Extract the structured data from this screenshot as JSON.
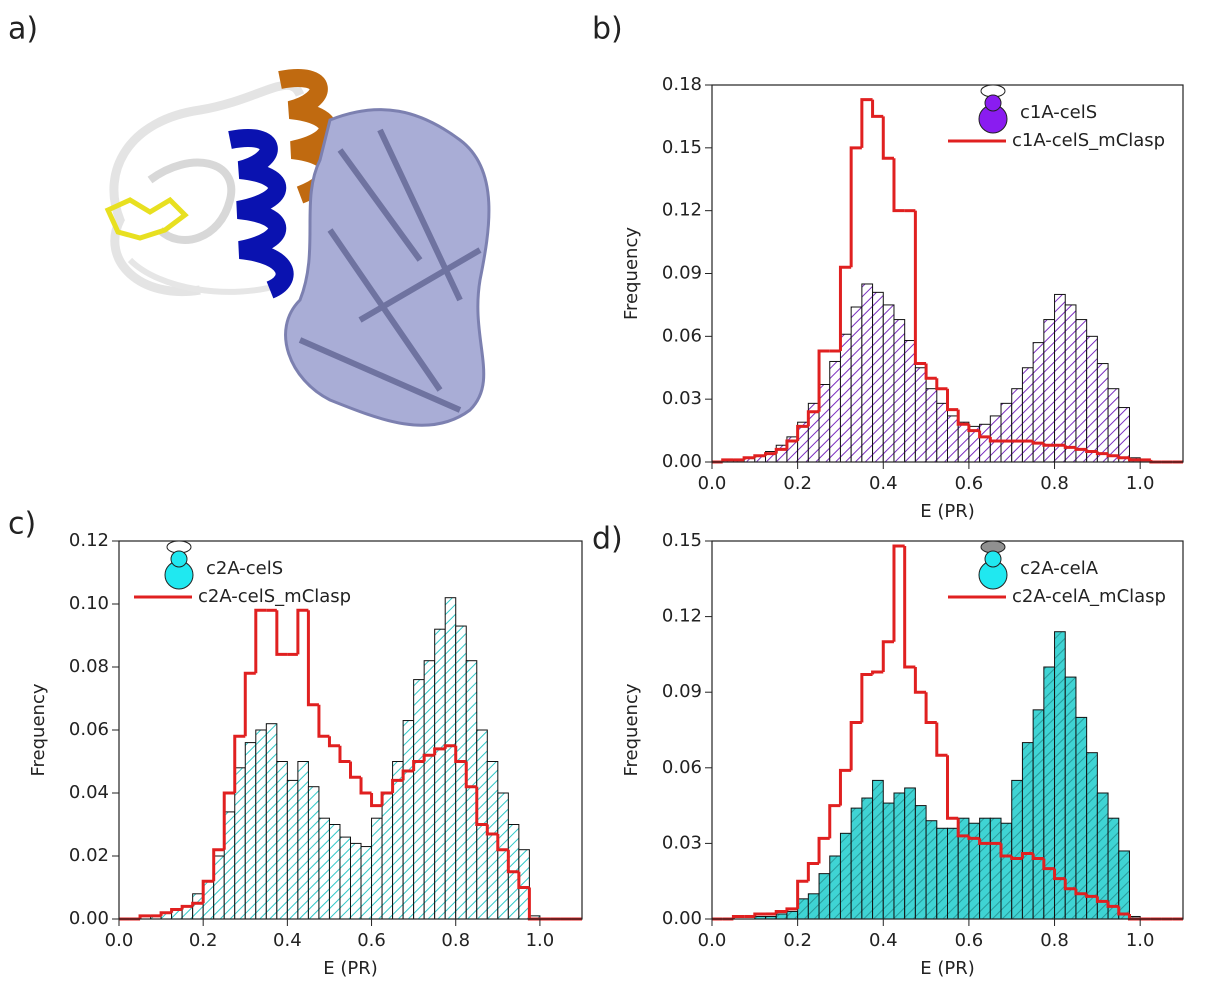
{
  "panel_a": {
    "label": "a)"
  },
  "chart_data": [
    {
      "type": "histogram",
      "label": "b)",
      "xlabel": "E (PR)",
      "ylabel": "Frequency",
      "bins": [
        0,
        0.025,
        0.05,
        0.075,
        0.1,
        0.125,
        0.15,
        0.175,
        0.2,
        0.225,
        0.25,
        0.275,
        0.3,
        0.325,
        0.35,
        0.375,
        0.4,
        0.425,
        0.45,
        0.475,
        0.5,
        0.525,
        0.55,
        0.575,
        0.6,
        0.625,
        0.65,
        0.675,
        0.7,
        0.725,
        0.75,
        0.775,
        0.8,
        0.825,
        0.85,
        0.875,
        0.9,
        0.925,
        0.95,
        0.975,
        1,
        1.025,
        1.05,
        1.075,
        1.1
      ],
      "xlim": [
        0,
        1.1
      ],
      "ylim": [
        0,
        0.18
      ],
      "xticks": [
        {
          "value": 0,
          "label": "0.0"
        },
        {
          "value": 0.2,
          "label": "0.2"
        },
        {
          "value": 0.4,
          "label": "0.4"
        },
        {
          "value": 0.6,
          "label": "0.6"
        },
        {
          "value": 0.8,
          "label": "0.8"
        },
        {
          "value": 1,
          "label": "1.0"
        }
      ],
      "yticks": [
        {
          "value": 0,
          "label": "0.00"
        },
        {
          "value": 0.03,
          "label": "0.03"
        },
        {
          "value": 0.06,
          "label": "0.06"
        },
        {
          "value": 0.09,
          "label": "0.09"
        },
        {
          "value": 0.12,
          "label": "0.12"
        },
        {
          "value": 0.15,
          "label": "0.15"
        },
        {
          "value": 0.18,
          "label": "0.18"
        }
      ],
      "legend": "upper right",
      "series": [
        {
          "name": "c1A-celS",
          "style": "bar",
          "color": "#7b2fbf",
          "fill": "#ffffff",
          "icon_color": "#8a1cf0",
          "cap_color": "#ffffff",
          "values": [
            0,
            0.001,
            0.001,
            0.002,
            0.003,
            0.005,
            0.008,
            0.012,
            0.019,
            0.028,
            0.037,
            0.048,
            0.061,
            0.074,
            0.085,
            0.081,
            0.075,
            0.068,
            0.058,
            0.045,
            0.035,
            0.028,
            0.022,
            0.019,
            0.017,
            0.018,
            0.022,
            0.028,
            0.035,
            0.045,
            0.057,
            0.068,
            0.08,
            0.075,
            0.068,
            0.06,
            0.047,
            0.035,
            0.026,
            0.002,
            0,
            0,
            0,
            0
          ]
        },
        {
          "name": "c1A-celS_mClasp",
          "style": "step",
          "color": "#e02020",
          "values": [
            0,
            0.001,
            0.001,
            0.002,
            0.003,
            0.004,
            0.006,
            0.01,
            0.017,
            0.024,
            0.053,
            0.053,
            0.093,
            0.15,
            0.173,
            0.165,
            0.145,
            0.12,
            0.12,
            0.047,
            0.04,
            0.035,
            0.025,
            0.018,
            0.015,
            0.012,
            0.01,
            0.01,
            0.01,
            0.01,
            0.009,
            0.008,
            0.008,
            0.007,
            0.006,
            0.005,
            0.004,
            0.003,
            0.002,
            0.001,
            0.001,
            0,
            0,
            0
          ]
        }
      ]
    },
    {
      "type": "histogram",
      "label": "c)",
      "xlabel": "E (PR)",
      "ylabel": "Frequency",
      "bins": [
        0,
        0.025,
        0.05,
        0.075,
        0.1,
        0.125,
        0.15,
        0.175,
        0.2,
        0.225,
        0.25,
        0.275,
        0.3,
        0.325,
        0.35,
        0.375,
        0.4,
        0.425,
        0.45,
        0.475,
        0.5,
        0.525,
        0.55,
        0.575,
        0.6,
        0.625,
        0.65,
        0.675,
        0.7,
        0.725,
        0.75,
        0.775,
        0.8,
        0.825,
        0.85,
        0.875,
        0.9,
        0.925,
        0.95,
        0.975,
        1,
        1.025,
        1.05,
        1.075,
        1.1
      ],
      "xlim": [
        0,
        1.1
      ],
      "ylim": [
        0,
        0.12
      ],
      "xticks": [
        {
          "value": 0,
          "label": "0.0"
        },
        {
          "value": 0.2,
          "label": "0.2"
        },
        {
          "value": 0.4,
          "label": "0.4"
        },
        {
          "value": 0.6,
          "label": "0.6"
        },
        {
          "value": 0.8,
          "label": "0.8"
        },
        {
          "value": 1,
          "label": "1.0"
        }
      ],
      "yticks": [
        {
          "value": 0,
          "label": "0.00"
        },
        {
          "value": 0.02,
          "label": "0.02"
        },
        {
          "value": 0.04,
          "label": "0.04"
        },
        {
          "value": 0.06,
          "label": "0.06"
        },
        {
          "value": 0.08,
          "label": "0.08"
        },
        {
          "value": 0.1,
          "label": "0.10"
        },
        {
          "value": 0.12,
          "label": "0.12"
        }
      ],
      "legend": "upper left",
      "series": [
        {
          "name": "c2A-celS",
          "style": "bar",
          "color": "#30c8c8",
          "fill": "#ffffff",
          "icon_color": "#20e8f0",
          "cap_color": "#ffffff",
          "values": [
            0,
            0,
            0,
            0.001,
            0.002,
            0.003,
            0.004,
            0.008,
            0.012,
            0.02,
            0.034,
            0.048,
            0.056,
            0.06,
            0.062,
            0.05,
            0.044,
            0.05,
            0.042,
            0.032,
            0.03,
            0.026,
            0.024,
            0.023,
            0.032,
            0.04,
            0.05,
            0.063,
            0.076,
            0.082,
            0.092,
            0.102,
            0.093,
            0.082,
            0.06,
            0.05,
            0.04,
            0.03,
            0.022,
            0.001,
            0,
            0,
            0,
            0
          ]
        },
        {
          "name": "c2A-celS_mClasp",
          "style": "step",
          "color": "#e02020",
          "values": [
            0,
            0,
            0.001,
            0.001,
            0.002,
            0.003,
            0.004,
            0.005,
            0.012,
            0.022,
            0.04,
            0.058,
            0.078,
            0.098,
            0.098,
            0.084,
            0.084,
            0.098,
            0.068,
            0.058,
            0.055,
            0.05,
            0.045,
            0.04,
            0.036,
            0.04,
            0.044,
            0.047,
            0.05,
            0.052,
            0.054,
            0.055,
            0.05,
            0.042,
            0.03,
            0.027,
            0.022,
            0.015,
            0.01,
            0,
            0,
            0,
            0,
            0
          ]
        }
      ]
    },
    {
      "type": "histogram",
      "label": "d)",
      "xlabel": "E (PR)",
      "ylabel": "Frequency",
      "bins": [
        0,
        0.025,
        0.05,
        0.075,
        0.1,
        0.125,
        0.15,
        0.175,
        0.2,
        0.225,
        0.25,
        0.275,
        0.3,
        0.325,
        0.35,
        0.375,
        0.4,
        0.425,
        0.45,
        0.475,
        0.5,
        0.525,
        0.55,
        0.575,
        0.6,
        0.625,
        0.65,
        0.675,
        0.7,
        0.725,
        0.75,
        0.775,
        0.8,
        0.825,
        0.85,
        0.875,
        0.9,
        0.925,
        0.95,
        0.975,
        1,
        1.025,
        1.05,
        1.075,
        1.1
      ],
      "xlim": [
        0,
        1.1
      ],
      "ylim": [
        0,
        0.15
      ],
      "xticks": [
        {
          "value": 0,
          "label": "0.0"
        },
        {
          "value": 0.2,
          "label": "0.2"
        },
        {
          "value": 0.4,
          "label": "0.4"
        },
        {
          "value": 0.6,
          "label": "0.6"
        },
        {
          "value": 0.8,
          "label": "0.8"
        },
        {
          "value": 1,
          "label": "1.0"
        }
      ],
      "yticks": [
        {
          "value": 0,
          "label": "0.00"
        },
        {
          "value": 0.03,
          "label": "0.03"
        },
        {
          "value": 0.06,
          "label": "0.06"
        },
        {
          "value": 0.09,
          "label": "0.09"
        },
        {
          "value": 0.12,
          "label": "0.12"
        },
        {
          "value": 0.15,
          "label": "0.15"
        }
      ],
      "legend": "upper right",
      "series": [
        {
          "name": "c2A-celA",
          "style": "bar",
          "color": "#2a9a9a",
          "fill": "#3fd4d4",
          "icon_color": "#20e8f0",
          "cap_color": "#909090",
          "values": [
            0,
            0,
            0,
            0,
            0.001,
            0.001,
            0.002,
            0.003,
            0.008,
            0.01,
            0.018,
            0.025,
            0.034,
            0.044,
            0.048,
            0.055,
            0.046,
            0.05,
            0.052,
            0.045,
            0.039,
            0.036,
            0.036,
            0.04,
            0.038,
            0.04,
            0.04,
            0.038,
            0.055,
            0.07,
            0.083,
            0.1,
            0.114,
            0.096,
            0.08,
            0.066,
            0.05,
            0.04,
            0.027,
            0.001,
            0,
            0,
            0,
            0
          ]
        },
        {
          "name": "c2A-celA_mClasp",
          "style": "step",
          "color": "#e02020",
          "values": [
            0,
            0,
            0.001,
            0.001,
            0.002,
            0.002,
            0.003,
            0.004,
            0.015,
            0.022,
            0.032,
            0.045,
            0.059,
            0.078,
            0.097,
            0.098,
            0.11,
            0.148,
            0.1,
            0.09,
            0.078,
            0.065,
            0.04,
            0.033,
            0.032,
            0.03,
            0.03,
            0.025,
            0.024,
            0.026,
            0.024,
            0.02,
            0.016,
            0.012,
            0.01,
            0.009,
            0.007,
            0.005,
            0.002,
            0,
            0,
            0,
            0,
            0
          ]
        }
      ]
    }
  ]
}
